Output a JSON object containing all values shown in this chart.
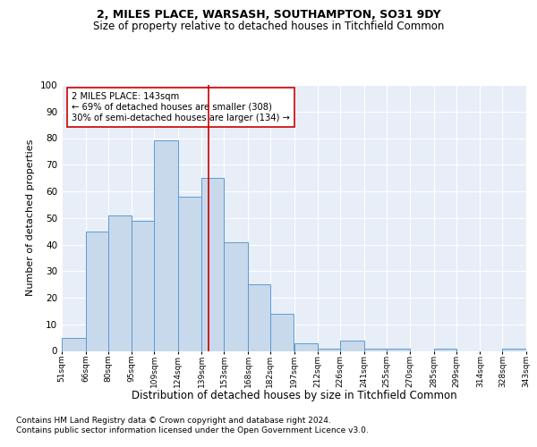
{
  "title1": "2, MILES PLACE, WARSASH, SOUTHAMPTON, SO31 9DY",
  "title2": "Size of property relative to detached houses in Titchfield Common",
  "xlabel": "Distribution of detached houses by size in Titchfield Common",
  "ylabel": "Number of detached properties",
  "footnote1": "Contains HM Land Registry data © Crown copyright and database right 2024.",
  "footnote2": "Contains public sector information licensed under the Open Government Licence v3.0.",
  "bin_labels": [
    "51sqm",
    "66sqm",
    "80sqm",
    "95sqm",
    "109sqm",
    "124sqm",
    "139sqm",
    "153sqm",
    "168sqm",
    "182sqm",
    "197sqm",
    "212sqm",
    "226sqm",
    "241sqm",
    "255sqm",
    "270sqm",
    "285sqm",
    "299sqm",
    "314sqm",
    "328sqm",
    "343sqm"
  ],
  "bar_heights": [
    5,
    45,
    51,
    49,
    79,
    58,
    65,
    41,
    25,
    14,
    3,
    1,
    4,
    1,
    1,
    0,
    1,
    0,
    0,
    1
  ],
  "bin_edges": [
    51,
    66,
    80,
    95,
    109,
    124,
    139,
    153,
    168,
    182,
    197,
    212,
    226,
    241,
    255,
    270,
    285,
    299,
    314,
    328,
    343
  ],
  "bar_color": "#c8d9eb",
  "bar_edge_color": "#5b9bd5",
  "vline_x": 143,
  "vline_color": "#cc0000",
  "annotation_text": "2 MILES PLACE: 143sqm\n← 69% of detached houses are smaller (308)\n30% of semi-detached houses are larger (134) →",
  "annotation_box_color": "#ffffff",
  "annotation_box_edge": "#cc0000",
  "ylim": [
    0,
    100
  ],
  "yticks": [
    0,
    10,
    20,
    30,
    40,
    50,
    60,
    70,
    80,
    90,
    100
  ],
  "bg_color": "#e8eef7",
  "fig_bg_color": "#ffffff",
  "title1_fontsize": 9,
  "title2_fontsize": 8.5,
  "xlabel_fontsize": 8.5,
  "ylabel_fontsize": 8,
  "footnote_fontsize": 6.5
}
